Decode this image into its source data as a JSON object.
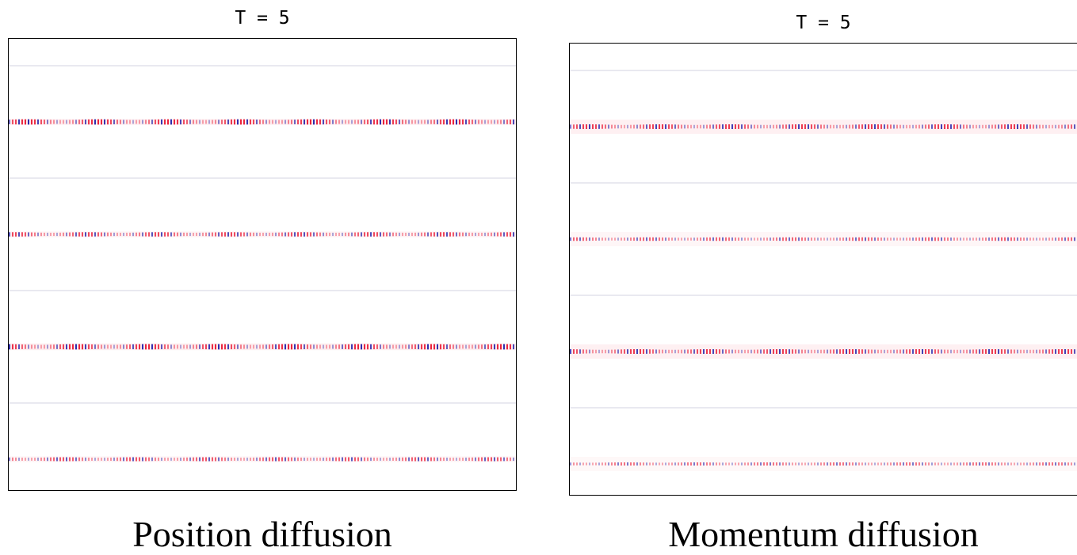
{
  "chart_data": [
    {
      "type": "heatmap",
      "title": "T = 5",
      "caption": "Position diffusion",
      "xlabel": "",
      "ylabel": "",
      "diverging_colors": {
        "positive": "#e8112d",
        "negative": "#1a1aa8",
        "zero": "#ffffff"
      },
      "bands": [
        {
          "row": 1,
          "intensity": 0.95,
          "spread": 0.12
        },
        {
          "row": 3,
          "intensity": 0.7,
          "spread": 0.12
        },
        {
          "row": 5,
          "intensity": 0.95,
          "spread": 0.14
        },
        {
          "row": 7,
          "intensity": 0.6,
          "spread": 0.12
        }
      ],
      "faint_rows": [
        0,
        2,
        4,
        6
      ]
    },
    {
      "type": "heatmap",
      "title": "T = 5",
      "caption": "Momentum diffusion",
      "xlabel": "",
      "ylabel": "",
      "diverging_colors": {
        "positive": "#e8112d",
        "negative": "#1a1aa8",
        "zero": "#ffffff"
      },
      "bands": [
        {
          "row": 1,
          "intensity": 0.8,
          "spread": 0.3
        },
        {
          "row": 3,
          "intensity": 0.5,
          "spread": 0.3
        },
        {
          "row": 5,
          "intensity": 0.8,
          "spread": 0.3
        },
        {
          "row": 7,
          "intensity": 0.4,
          "spread": 0.3
        }
      ],
      "faint_rows": [
        0,
        2,
        4,
        6
      ]
    }
  ]
}
